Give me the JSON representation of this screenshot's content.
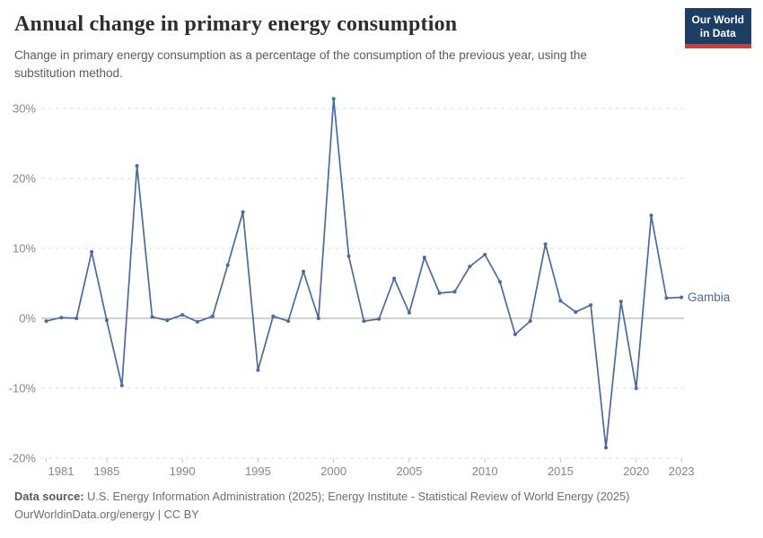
{
  "header": {
    "title": "Annual change in primary energy consumption",
    "subtitle": "Change in primary energy consumption as a percentage of the consumption of the previous year, using the substitution method.",
    "logo": {
      "line1": "Our World",
      "line2": "in Data"
    }
  },
  "colors": {
    "line": "#4C6A9C",
    "axis_zero": "#a3a3a3",
    "gridline": "#dcdcdc",
    "tick_label": "#878787",
    "x_tick_mark": "#c8c8c8",
    "logo_bg": "#1d3d63",
    "logo_red": "#d13d39"
  },
  "chart_data": {
    "type": "line",
    "title": "Annual change in primary energy consumption",
    "xlabel": "",
    "ylabel": "",
    "grid": true,
    "legend": "end-of-line entity label",
    "x_range": [
      1981,
      2023
    ],
    "ylim": [
      -20,
      32
    ],
    "x": [
      1981,
      1982,
      1983,
      1984,
      1985,
      1986,
      1987,
      1988,
      1989,
      1990,
      1991,
      1992,
      1993,
      1994,
      1995,
      1996,
      1997,
      1998,
      1999,
      2000,
      2001,
      2002,
      2003,
      2004,
      2005,
      2006,
      2007,
      2008,
      2009,
      2010,
      2011,
      2012,
      2013,
      2014,
      2015,
      2016,
      2017,
      2018,
      2019,
      2020,
      2021,
      2022,
      2023
    ],
    "series": [
      {
        "name": "Gambia",
        "values": [
          -0.4,
          0.1,
          0.0,
          9.5,
          -0.3,
          -9.6,
          21.8,
          0.2,
          -0.3,
          0.5,
          -0.5,
          0.3,
          7.6,
          15.2,
          -7.4,
          0.3,
          -0.4,
          6.7,
          0.0,
          31.4,
          8.9,
          -0.4,
          -0.1,
          5.7,
          0.8,
          8.7,
          3.6,
          3.8,
          7.4,
          9.1,
          5.2,
          -2.3,
          -0.4,
          10.6,
          2.5,
          0.9,
          1.9,
          -18.5,
          2.4,
          -10.0,
          14.7,
          2.9,
          3.0
        ]
      }
    ],
    "yticks": [
      {
        "value": -20,
        "label": "-20%"
      },
      {
        "value": -10,
        "label": "-10%"
      },
      {
        "value": 0,
        "label": "0%"
      },
      {
        "value": 10,
        "label": "10%"
      },
      {
        "value": 20,
        "label": "20%"
      },
      {
        "value": 30,
        "label": "30%"
      }
    ],
    "xticks": [
      1981,
      1985,
      1990,
      1995,
      2000,
      2005,
      2010,
      2015,
      2020,
      2023
    ]
  },
  "footer": {
    "datasource_label": "Data source:",
    "datasource_text": "U.S. Energy Information Administration (2025); Energy Institute - Statistical Review of World Energy (2025)",
    "link_line": "OurWorldinData.org/energy | CC BY"
  }
}
